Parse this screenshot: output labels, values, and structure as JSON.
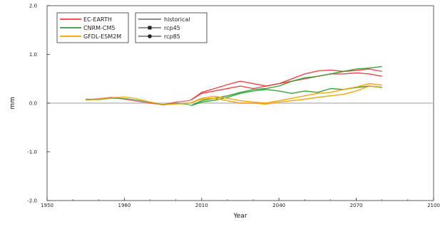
{
  "chart_data": {
    "type": "line",
    "xlabel": "Year",
    "ylabel": "mm",
    "xlim": [
      1950,
      2100
    ],
    "ylim": [
      -2.0,
      2.0
    ],
    "x_ticks": [
      {
        "value": 1950,
        "label": "1950"
      },
      {
        "value": 1980,
        "label": "1980"
      },
      {
        "value": 2010,
        "label": "2010"
      },
      {
        "value": 2040,
        "label": "2040"
      },
      {
        "value": 2070,
        "label": "2070"
      },
      {
        "value": 2100,
        "label": "2100"
      }
    ],
    "y_ticks": [
      {
        "value": 2.0,
        "label": "2.0"
      },
      {
        "value": 1.0,
        "label": "1.0"
      },
      {
        "value": 0.0,
        "label": "0.0"
      },
      {
        "value": -1.0,
        "label": "-1.0"
      },
      {
        "value": -2.0,
        "label": "-2.0"
      }
    ],
    "zero_line": true,
    "legend_models": [
      {
        "name": "EC-EARTH",
        "color": "#ee3b3b"
      },
      {
        "name": "CNRM-CM5",
        "color": "#2e9e2e"
      },
      {
        "name": "GFDL-ESM2M",
        "color": "#f2a000"
      }
    ],
    "legend_scenarios": [
      {
        "name": "historical",
        "marker": "none"
      },
      {
        "name": "rcp45",
        "marker": "square"
      },
      {
        "name": "rcp85",
        "marker": "circle"
      }
    ],
    "series": [
      {
        "model": "EC-EARTH",
        "scenario": "historical",
        "color": "#ee3b3b",
        "x": [
          1965,
          1970,
          1975,
          1980,
          1985,
          1990,
          1995,
          2000,
          2005,
          2006
        ],
        "y": [
          0.07,
          0.09,
          0.12,
          0.08,
          0.04,
          0.0,
          -0.03,
          0.02,
          0.05,
          0.07
        ]
      },
      {
        "model": "CNRM-CM5",
        "scenario": "historical",
        "color": "#2e9e2e",
        "x": [
          1965,
          1970,
          1975,
          1980,
          1985,
          1990,
          1995,
          2000,
          2005,
          2006
        ],
        "y": [
          0.08,
          0.07,
          0.1,
          0.1,
          0.06,
          0.02,
          -0.04,
          0.0,
          -0.03,
          -0.05
        ]
      },
      {
        "model": "GFDL-ESM2M",
        "scenario": "historical",
        "color": "#f2a000",
        "x": [
          1965,
          1970,
          1975,
          1980,
          1985,
          1990,
          1995,
          2000,
          2005,
          2006
        ],
        "y": [
          0.06,
          0.08,
          0.11,
          0.13,
          0.09,
          0.02,
          -0.03,
          -0.02,
          0.0,
          0.01
        ]
      },
      {
        "model": "EC-EARTH",
        "scenario": "rcp45",
        "color": "#ee3b3b",
        "x": [
          2006,
          2010,
          2015,
          2020,
          2025,
          2030,
          2035,
          2040,
          2045,
          2050,
          2055,
          2060,
          2065,
          2070,
          2075,
          2080
        ],
        "y": [
          0.07,
          0.2,
          0.25,
          0.3,
          0.35,
          0.3,
          0.35,
          0.4,
          0.45,
          0.5,
          0.55,
          0.6,
          0.6,
          0.62,
          0.6,
          0.55
        ]
      },
      {
        "model": "EC-EARTH",
        "scenario": "rcp85",
        "color": "#ee3b3b",
        "x": [
          2006,
          2010,
          2015,
          2020,
          2025,
          2030,
          2035,
          2040,
          2045,
          2050,
          2055,
          2060,
          2065,
          2070,
          2075,
          2080
        ],
        "y": [
          0.07,
          0.22,
          0.3,
          0.38,
          0.45,
          0.4,
          0.35,
          0.4,
          0.5,
          0.6,
          0.66,
          0.68,
          0.65,
          0.67,
          0.7,
          0.65
        ]
      },
      {
        "model": "CNRM-CM5",
        "scenario": "rcp45",
        "color": "#2e9e2e",
        "x": [
          2006,
          2010,
          2015,
          2020,
          2025,
          2030,
          2035,
          2040,
          2045,
          2050,
          2055,
          2060,
          2065,
          2070,
          2075,
          2080
        ],
        "y": [
          -0.05,
          0.02,
          0.06,
          0.12,
          0.2,
          0.25,
          0.28,
          0.25,
          0.2,
          0.25,
          0.22,
          0.3,
          0.28,
          0.32,
          0.35,
          0.32
        ]
      },
      {
        "model": "CNRM-CM5",
        "scenario": "rcp85",
        "color": "#2e9e2e",
        "x": [
          2006,
          2010,
          2015,
          2020,
          2025,
          2030,
          2035,
          2040,
          2045,
          2050,
          2055,
          2060,
          2065,
          2070,
          2075,
          2080
        ],
        "y": [
          -0.05,
          0.05,
          0.1,
          0.15,
          0.22,
          0.28,
          0.3,
          0.35,
          0.45,
          0.52,
          0.55,
          0.6,
          0.65,
          0.7,
          0.72,
          0.75
        ]
      },
      {
        "model": "GFDL-ESM2M",
        "scenario": "rcp45",
        "color": "#f2a000",
        "x": [
          2006,
          2010,
          2015,
          2020,
          2025,
          2030,
          2035,
          2040,
          2045,
          2050,
          2055,
          2060,
          2065,
          2070,
          2075,
          2080
        ],
        "y": [
          0.01,
          0.08,
          0.1,
          0.05,
          0.0,
          0.0,
          -0.02,
          0.02,
          0.05,
          0.08,
          0.12,
          0.15,
          0.18,
          0.25,
          0.35,
          0.33
        ]
      },
      {
        "model": "GFDL-ESM2M",
        "scenario": "rcp85",
        "color": "#f2a000",
        "x": [
          2006,
          2010,
          2015,
          2020,
          2025,
          2030,
          2035,
          2040,
          2045,
          2050,
          2055,
          2060,
          2065,
          2070,
          2075,
          2080
        ],
        "y": [
          0.01,
          0.1,
          0.14,
          0.1,
          0.05,
          0.02,
          0.0,
          0.05,
          0.1,
          0.15,
          0.2,
          0.22,
          0.28,
          0.33,
          0.4,
          0.37
        ]
      }
    ]
  }
}
